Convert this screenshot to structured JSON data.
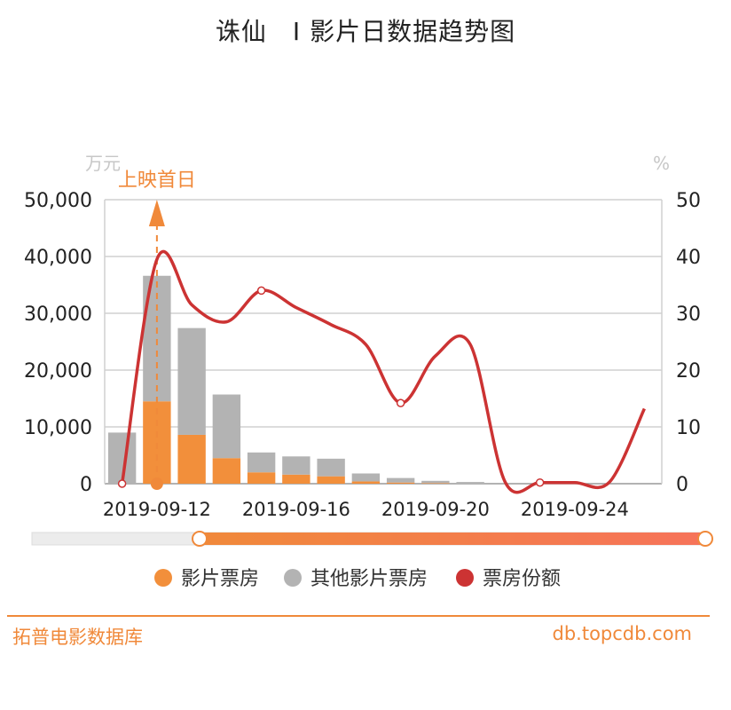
{
  "title": "诛仙　I 影片日数据趋势图",
  "chart_data": {
    "type": "bar",
    "x": [
      "2019-09-11",
      "2019-09-12",
      "2019-09-13",
      "2019-09-14",
      "2019-09-15",
      "2019-09-16",
      "2019-09-17",
      "2019-09-18",
      "2019-09-19",
      "2019-09-20",
      "2019-09-21",
      "2019-09-22",
      "2019-09-23",
      "2019-09-24",
      "2019-09-25",
      "2019-09-26"
    ],
    "x_tick_labels": [
      "2019-09-12",
      "2019-09-16",
      "2019-09-20",
      "2019-09-24"
    ],
    "left_unit": "万元",
    "right_unit": "%",
    "left_ticks": [
      "0",
      "10,000",
      "20,000",
      "30,000",
      "40,000",
      "50,000"
    ],
    "right_ticks": [
      "0",
      "10",
      "20",
      "30",
      "40",
      "50"
    ],
    "ylim_left": [
      0,
      50000
    ],
    "ylim_right": [
      0,
      50
    ],
    "series": [
      {
        "name": "影片票房",
        "type": "bar",
        "stack": "total",
        "color": "#f28f3b",
        "values": [
          0,
          14500,
          8600,
          4500,
          2000,
          1600,
          1300,
          400,
          200,
          100,
          0,
          0,
          0,
          0,
          0,
          0
        ]
      },
      {
        "name": "其他影片票房",
        "type": "bar",
        "stack": "total",
        "color": "#b3b3b3",
        "values": [
          9000,
          22100,
          18800,
          11200,
          3500,
          3200,
          3100,
          1400,
          800,
          400,
          300,
          0,
          0,
          0,
          0,
          0
        ]
      },
      {
        "name": "票房份额",
        "type": "line",
        "axis": "right",
        "color": "#cc3333",
        "values": [
          0,
          39.5,
          31.5,
          28.5,
          34,
          31,
          28,
          24.5,
          14.2,
          22.5,
          24.5,
          0.3,
          0.2,
          0.2,
          0.3,
          13.2
        ]
      }
    ],
    "annotation": {
      "label": "上映首日",
      "x": "2019-09-12"
    },
    "grid": true,
    "legend_position": "bottom"
  },
  "footer": {
    "left": "拓普电影数据库",
    "right": "db.topcdb.com"
  }
}
